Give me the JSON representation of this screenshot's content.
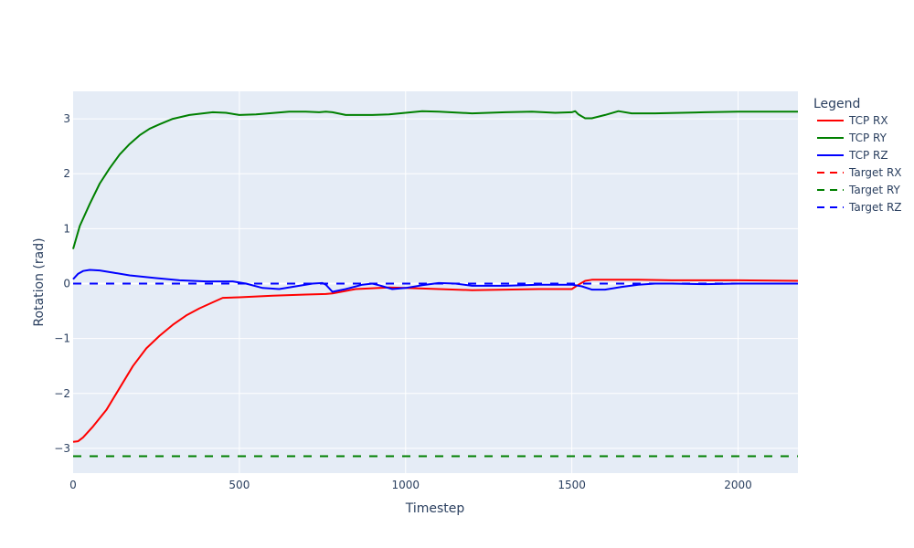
{
  "chart_data": {
    "type": "line",
    "xlabel": "Timestep",
    "ylabel": "Rotation (rad)",
    "xlim": [
      0,
      2180
    ],
    "ylim": [
      -3.45,
      3.5
    ],
    "x_ticks": [
      0,
      500,
      1000,
      1500,
      2000
    ],
    "y_ticks": [
      -3,
      -2,
      -1,
      0,
      1,
      2,
      3
    ],
    "x_tick_labels": [
      "0",
      "500",
      "1000",
      "1500",
      "2000"
    ],
    "y_tick_labels": [
      "−3",
      "−2",
      "−1",
      "0",
      "1",
      "2",
      "3"
    ],
    "grid": true,
    "legend": {
      "title": "Legend",
      "placement": "right",
      "entries": [
        "TCP RX",
        "TCP RY",
        "TCP RZ",
        "Target RX",
        "Target RY",
        "Target RZ"
      ]
    },
    "series": [
      {
        "name": "TCP RX",
        "color": "#ff0000",
        "dash": "solid",
        "x": [
          0,
          15,
          30,
          60,
          100,
          140,
          180,
          220,
          260,
          300,
          340,
          380,
          420,
          450,
          500,
          600,
          700,
          760,
          780,
          850,
          950,
          1000,
          1100,
          1200,
          1300,
          1400,
          1500,
          1520,
          1540,
          1560,
          1600,
          1700,
          1800,
          2000,
          2180
        ],
        "y": [
          -2.88,
          -2.87,
          -2.8,
          -2.6,
          -2.3,
          -1.9,
          -1.5,
          -1.18,
          -0.95,
          -0.75,
          -0.58,
          -0.45,
          -0.34,
          -0.26,
          -0.25,
          -0.22,
          -0.2,
          -0.19,
          -0.18,
          -0.1,
          -0.07,
          -0.08,
          -0.1,
          -0.12,
          -0.11,
          -0.1,
          -0.1,
          -0.02,
          0.05,
          0.07,
          0.07,
          0.07,
          0.06,
          0.06,
          0.05
        ]
      },
      {
        "name": "TCP RY",
        "color": "#008000",
        "dash": "solid",
        "x": [
          0,
          20,
          50,
          80,
          110,
          140,
          170,
          200,
          230,
          260,
          300,
          350,
          420,
          460,
          500,
          550,
          650,
          700,
          740,
          760,
          780,
          820,
          900,
          950,
          1050,
          1100,
          1200,
          1300,
          1380,
          1450,
          1500,
          1510,
          1520,
          1540,
          1560,
          1600,
          1640,
          1680,
          1750,
          1900,
          2000,
          2180
        ],
        "y": [
          0.63,
          1.05,
          1.45,
          1.82,
          2.1,
          2.35,
          2.54,
          2.7,
          2.82,
          2.9,
          3.0,
          3.07,
          3.12,
          3.11,
          3.07,
          3.08,
          3.13,
          3.13,
          3.12,
          3.13,
          3.12,
          3.07,
          3.07,
          3.08,
          3.14,
          3.13,
          3.1,
          3.12,
          3.13,
          3.11,
          3.12,
          3.14,
          3.08,
          3.01,
          3.01,
          3.07,
          3.14,
          3.1,
          3.1,
          3.12,
          3.13,
          3.13
        ]
      },
      {
        "name": "TCP RZ",
        "color": "#0000ff",
        "dash": "solid",
        "x": [
          0,
          15,
          30,
          50,
          80,
          120,
          170,
          250,
          320,
          360,
          400,
          450,
          480,
          520,
          570,
          620,
          680,
          720,
          750,
          760,
          780,
          820,
          870,
          900,
          920,
          960,
          1000,
          1050,
          1100,
          1150,
          1200,
          1300,
          1400,
          1500,
          1530,
          1560,
          1600,
          1650,
          1700,
          1750,
          1800,
          1900,
          2000,
          2180
        ],
        "y": [
          0.08,
          0.18,
          0.23,
          0.25,
          0.24,
          0.2,
          0.15,
          0.1,
          0.06,
          0.05,
          0.04,
          0.04,
          0.04,
          0.0,
          -0.08,
          -0.1,
          -0.04,
          0.0,
          0.01,
          -0.02,
          -0.15,
          -0.1,
          -0.02,
          0.0,
          -0.03,
          -0.1,
          -0.08,
          -0.03,
          0.01,
          0.0,
          -0.04,
          -0.04,
          -0.02,
          -0.02,
          -0.05,
          -0.11,
          -0.11,
          -0.06,
          -0.02,
          0.0,
          0.0,
          -0.01,
          0.0,
          0.0
        ]
      },
      {
        "name": "Target RX",
        "color": "#ff0000",
        "dash": "dash",
        "x": [
          0,
          2180
        ],
        "y": [
          0.0,
          0.0
        ]
      },
      {
        "name": "Target RY",
        "color": "#008000",
        "dash": "dash",
        "x": [
          0,
          2180
        ],
        "y": [
          -3.14159,
          -3.14159
        ]
      },
      {
        "name": "Target RZ",
        "color": "#0000ff",
        "dash": "dash",
        "x": [
          0,
          2180
        ],
        "y": [
          0.0,
          0.0
        ]
      }
    ]
  }
}
